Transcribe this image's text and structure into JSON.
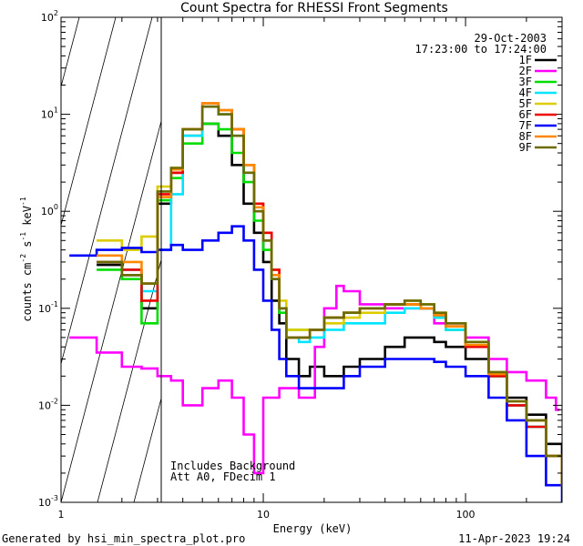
{
  "chart_data": {
    "type": "line",
    "title": "Count Spectra for RHESSI Front Segments",
    "xlabel": "Energy (keV)",
    "ylabel_parts": [
      "counts cm",
      "-2",
      " s",
      "-1",
      " keV",
      "-1"
    ],
    "xscale": "log",
    "yscale": "log",
    "xlim": [
      1,
      300
    ],
    "ylim": [
      0.001,
      100
    ],
    "x_tick_labels": [
      "1",
      "10",
      "100"
    ],
    "y_tick_labels": [
      {
        "base": "10",
        "exp": "-3"
      },
      {
        "base": "10",
        "exp": "-2"
      },
      {
        "base": "10",
        "exp": "-1"
      },
      {
        "base": "10",
        "exp": "0"
      },
      {
        "base": "10",
        "exp": "1"
      },
      {
        "base": "10",
        "exp": "2"
      }
    ],
    "date": "29-Oct-2003",
    "time_range": "17:23:00 to 17:24:00",
    "annotations": [
      "Includes Background",
      "Att A0, FDecim 1"
    ],
    "shaded_region_kev": [
      1,
      3
    ],
    "series": [
      {
        "name": "1F",
        "color": "#000000",
        "x": [
          1.5,
          2,
          2.5,
          3,
          3.5,
          4,
          5,
          6,
          7,
          8,
          9,
          10,
          11,
          12,
          13,
          15,
          17,
          20,
          25,
          30,
          40,
          50,
          60,
          70,
          80,
          100,
          130,
          160,
          200,
          250,
          300
        ],
        "y": [
          0.28,
          0.22,
          0.1,
          1.2,
          2.5,
          6,
          8,
          6,
          3,
          1.2,
          0.6,
          0.3,
          0.12,
          0.07,
          0.03,
          0.02,
          0.025,
          0.02,
          0.025,
          0.03,
          0.04,
          0.05,
          0.05,
          0.045,
          0.04,
          0.03,
          0.02,
          0.012,
          0.008,
          0.004,
          0.002
        ]
      },
      {
        "name": "2F",
        "color": "#ff00ff",
        "x": [
          1.1,
          1.5,
          2,
          2.5,
          3,
          3.5,
          4,
          5,
          6,
          7,
          8,
          9,
          10,
          12,
          15,
          18,
          20,
          23,
          25,
          30,
          40,
          50,
          70,
          100,
          130,
          160,
          200,
          250,
          280
        ],
        "y": [
          0.05,
          0.035,
          0.025,
          0.024,
          0.02,
          0.018,
          0.01,
          0.015,
          0.018,
          0.012,
          0.005,
          0.002,
          0.012,
          0.015,
          0.012,
          0.04,
          0.1,
          0.17,
          0.15,
          0.11,
          0.1,
          0.1,
          0.07,
          0.05,
          0.03,
          0.022,
          0.018,
          0.012,
          0.009
        ]
      },
      {
        "name": "3F",
        "color": "#00dd00",
        "x": [
          1.5,
          2,
          2.5,
          3,
          3.5,
          4,
          5,
          6,
          7,
          8,
          9,
          10,
          11,
          12,
          13,
          15,
          17,
          20,
          25,
          30,
          40,
          50,
          60,
          70,
          80,
          100,
          130,
          160,
          200,
          250,
          300
        ],
        "y": [
          0.25,
          0.2,
          0.07,
          1.3,
          2.2,
          5,
          8,
          7,
          4,
          2,
          0.8,
          0.4,
          0.2,
          0.09,
          0.06,
          0.06,
          0.06,
          0.08,
          0.09,
          0.1,
          0.11,
          0.11,
          0.1,
          0.08,
          0.06,
          0.04,
          0.02,
          0.01,
          0.006,
          0.003,
          0.0015
        ]
      },
      {
        "name": "4F",
        "color": "#00e5ff",
        "x": [
          1.5,
          2,
          2.5,
          3,
          3.5,
          4,
          5,
          6,
          7,
          8,
          9,
          10,
          11,
          12,
          13,
          15,
          17,
          20,
          25,
          30,
          40,
          50,
          60,
          70,
          80,
          100,
          130,
          160,
          200,
          250,
          300
        ],
        "y": [
          0.3,
          0.25,
          0.15,
          0.4,
          1.5,
          6,
          12,
          10,
          6,
          2.5,
          1,
          0.5,
          0.2,
          0.1,
          0.05,
          0.045,
          0.05,
          0.06,
          0.07,
          0.07,
          0.09,
          0.1,
          0.1,
          0.08,
          0.06,
          0.04,
          0.02,
          0.01,
          0.006,
          0.003,
          0.0015
        ]
      },
      {
        "name": "5F",
        "color": "#ddcc00",
        "x": [
          1.5,
          2,
          2.5,
          3,
          3.5,
          4,
          5,
          6,
          7,
          8,
          9,
          10,
          11,
          12,
          13,
          15,
          17,
          20,
          25,
          30,
          40,
          50,
          60,
          70,
          80,
          100,
          130,
          160,
          200,
          250,
          300
        ],
        "y": [
          0.5,
          0.4,
          0.55,
          1.8,
          2.8,
          7,
          12,
          11,
          7,
          3,
          1.2,
          0.6,
          0.25,
          0.12,
          0.06,
          0.06,
          0.06,
          0.07,
          0.08,
          0.09,
          0.11,
          0.12,
          0.11,
          0.09,
          0.07,
          0.045,
          0.022,
          0.011,
          0.007,
          0.003,
          0.0015
        ]
      },
      {
        "name": "6F",
        "color": "#ee0000",
        "x": [
          1.5,
          2,
          2.5,
          3,
          3.5,
          4,
          5,
          6,
          7,
          8,
          9,
          10,
          11,
          12,
          13,
          15,
          17,
          20,
          25,
          30,
          40,
          50,
          60,
          70,
          80,
          100,
          130,
          160,
          200,
          250,
          300
        ],
        "y": [
          0.3,
          0.25,
          0.12,
          1.5,
          2.5,
          7,
          13,
          11,
          7,
          3,
          1.2,
          0.6,
          0.25,
          0.1,
          0.05,
          0.05,
          0.06,
          0.08,
          0.09,
          0.1,
          0.11,
          0.11,
          0.1,
          0.085,
          0.065,
          0.04,
          0.02,
          0.01,
          0.006,
          0.003,
          0.0015
        ]
      },
      {
        "name": "7F",
        "color": "#0000ff",
        "x": [
          1.1,
          1.5,
          2,
          2.5,
          3,
          3.5,
          4,
          5,
          6,
          7,
          8,
          9,
          10,
          11,
          12,
          13,
          15,
          17,
          20,
          25,
          30,
          40,
          50,
          60,
          70,
          80,
          100,
          130,
          160,
          200,
          250,
          300
        ],
        "y": [
          0.35,
          0.4,
          0.42,
          0.38,
          0.4,
          0.45,
          0.4,
          0.5,
          0.6,
          0.7,
          0.5,
          0.25,
          0.12,
          0.06,
          0.03,
          0.02,
          0.015,
          0.015,
          0.015,
          0.02,
          0.025,
          0.03,
          0.03,
          0.03,
          0.028,
          0.025,
          0.02,
          0.012,
          0.007,
          0.003,
          0.0015,
          0.001
        ]
      },
      {
        "name": "8F",
        "color": "#ff8800",
        "x": [
          1.5,
          2,
          2.5,
          3,
          3.5,
          4,
          5,
          6,
          7,
          8,
          9,
          10,
          11,
          12,
          13,
          15,
          17,
          20,
          25,
          30,
          40,
          50,
          60,
          70,
          80,
          100,
          130,
          160,
          200,
          250,
          300
        ],
        "y": [
          0.35,
          0.3,
          0.18,
          1.4,
          2.7,
          7,
          13,
          11,
          7,
          3,
          1.1,
          0.5,
          0.22,
          0.1,
          0.05,
          0.05,
          0.06,
          0.08,
          0.09,
          0.1,
          0.11,
          0.11,
          0.1,
          0.085,
          0.065,
          0.042,
          0.021,
          0.011,
          0.007,
          0.003,
          0.0015
        ]
      },
      {
        "name": "9F",
        "color": "#6b6b00",
        "x": [
          1.5,
          2,
          2.5,
          3,
          3.5,
          4,
          5,
          6,
          7,
          8,
          9,
          10,
          11,
          12,
          13,
          15,
          17,
          20,
          25,
          30,
          40,
          50,
          60,
          70,
          80,
          100,
          130,
          160,
          200,
          250,
          300
        ],
        "y": [
          0.3,
          0.22,
          0.18,
          1.6,
          2.8,
          7,
          12,
          10,
          6,
          2.5,
          1,
          0.5,
          0.2,
          0.1,
          0.05,
          0.05,
          0.06,
          0.08,
          0.09,
          0.1,
          0.11,
          0.12,
          0.11,
          0.09,
          0.07,
          0.045,
          0.022,
          0.011,
          0.007,
          0.003,
          0.0015
        ]
      }
    ]
  },
  "footer": {
    "left": "Generated by hsi_min_spectra_plot.pro",
    "right": "11-Apr-2023 19:24"
  }
}
